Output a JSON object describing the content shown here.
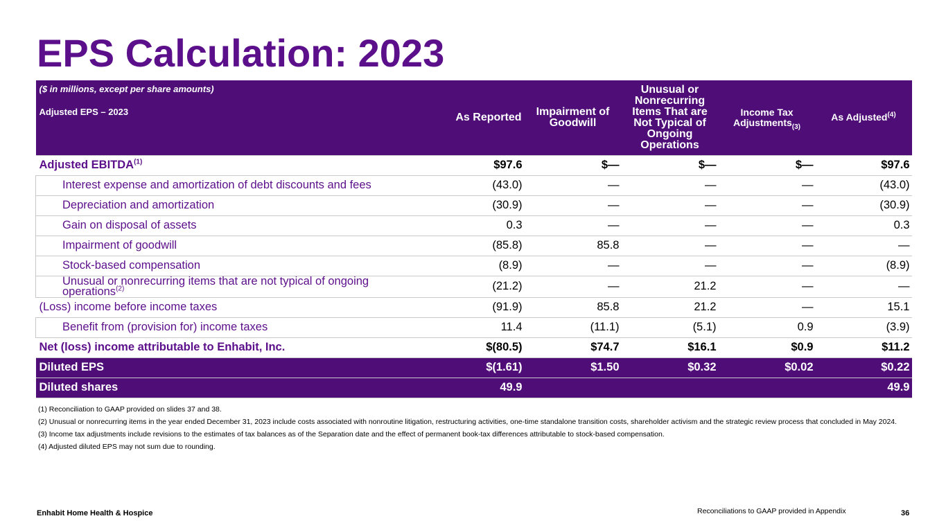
{
  "title": "EPS Calculation: 2023",
  "colors": {
    "brand_purple": "#5c0f8b",
    "header_purple": "#4f0d78"
  },
  "table": {
    "header": {
      "note": "($ in millions, except per share amounts)",
      "subtitle": "Adjusted EPS – 2023",
      "col1": "As Reported",
      "col2": "Impairment of Goodwill",
      "col3": "Unusual or Nonrecurring Items That are Not Typical of Ongoing Operations",
      "col4": "Income Tax Adjustments",
      "col4_sup": "(3)",
      "col5": "As Adjusted",
      "col5_sup": "(4)"
    },
    "rows": [
      {
        "label": "Adjusted EBITDA",
        "sup": "(1)",
        "v1": "$97.6",
        "v2": "$—",
        "v3": "$—",
        "v4": "$—",
        "v5": "$97.6"
      },
      {
        "label": "Interest expense and amortization of debt discounts and fees",
        "v1": "(43.0)",
        "v2": "—",
        "v3": "—",
        "v4": "—",
        "v5": "(43.0)"
      },
      {
        "label": "Depreciation and amortization",
        "v1": "(30.9)",
        "v2": "—",
        "v3": "—",
        "v4": "—",
        "v5": "(30.9)"
      },
      {
        "label": "Gain on disposal of assets",
        "v1": "0.3",
        "v2": "—",
        "v3": "—",
        "v4": "—",
        "v5": "0.3"
      },
      {
        "label": "Impairment of goodwill",
        "v1": "(85.8)",
        "v2": "85.8",
        "v3": "—",
        "v4": "—",
        "v5": "—"
      },
      {
        "label": "Stock-based compensation",
        "v1": "(8.9)",
        "v2": "—",
        "v3": "—",
        "v4": "—",
        "v5": "(8.9)"
      },
      {
        "label": "Unusual or nonrecurring items that are not typical of ongoing operations",
        "sup": "(2)",
        "v1": "(21.2)",
        "v2": "—",
        "v3": "21.2",
        "v4": "—",
        "v5": "—"
      },
      {
        "label": "(Loss) income before income taxes",
        "v1": "(91.9)",
        "v2": "85.8",
        "v3": "21.2",
        "v4": "—",
        "v5": "15.1"
      },
      {
        "label": "Benefit from (provision for) income taxes",
        "v1": "11.4",
        "v2": "(11.1)",
        "v3": "(5.1)",
        "v4": "0.9",
        "v5": "(3.9)"
      },
      {
        "label": "Net (loss) income attributable to Enhabit, Inc.",
        "v1": "$(80.5)",
        "v2": "$74.7",
        "v3": "$16.1",
        "v4": "$0.9",
        "v5": "$11.2"
      },
      {
        "label": "Diluted EPS",
        "v1": "$(1.61)",
        "v2": "$1.50",
        "v3": "$0.32",
        "v4": "$0.02",
        "v5": "$0.22"
      },
      {
        "label": "Diluted shares",
        "v1": "49.9",
        "v2": "",
        "v3": "",
        "v4": "",
        "v5": "49.9"
      }
    ]
  },
  "footnotes": [
    "(1) Reconciliation to GAAP provided on slides 37 and 38.",
    "(2) Unusual or nonrecurring items in the year ended December 31, 2023 include costs associated with nonroutine litigation, restructuring activities, one-time standalone transition costs, shareholder activism and the strategic review process that concluded in May 2024.",
    "(3) Income tax adjustments include revisions to the estimates of tax balances as of the Separation date and the effect of permanent book-tax differences attributable to stock-based compensation.",
    "(4) Adjusted diluted EPS may not sum due to rounding."
  ],
  "footer": {
    "company": "Enhabit Home Health & Hospice",
    "note": "Reconciliations to GAAP provided in Appendix",
    "page": "36"
  }
}
